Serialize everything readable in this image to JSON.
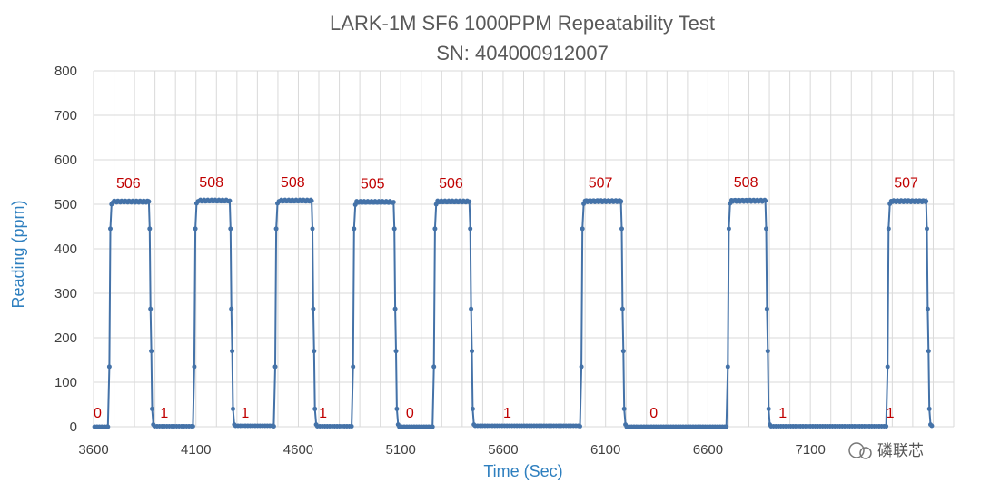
{
  "chart_data": {
    "type": "scatter",
    "title": "LARK-1M SF6 1000PPM Repeatability Test",
    "subtitle": "SN: 404000912007",
    "xlabel": "Time (Sec)",
    "ylabel": "Reading (ppm)",
    "xlim": [
      3600,
      7800
    ],
    "ylim": [
      0,
      800
    ],
    "x_ticks": [
      3600,
      4100,
      4600,
      5100,
      5600,
      6100,
      6600,
      7100
    ],
    "y_ticks": [
      0,
      100,
      200,
      300,
      400,
      500,
      600,
      700,
      800
    ],
    "grid": true,
    "legend": "none",
    "color": "#4472a8",
    "cycles": [
      {
        "rise_start": 3670,
        "fall_start": 3870,
        "baseline_before": 0,
        "plateau": 506
      },
      {
        "rise_start": 4085,
        "fall_start": 4265,
        "baseline_before": 1,
        "plateau": 508
      },
      {
        "rise_start": 4480,
        "fall_start": 4665,
        "baseline_before": 1,
        "plateau": 508
      },
      {
        "rise_start": 4860,
        "fall_start": 5065,
        "baseline_before": 1,
        "plateau": 505
      },
      {
        "rise_start": 5255,
        "fall_start": 5435,
        "baseline_before": 0,
        "plateau": 506
      },
      {
        "rise_start": 5975,
        "fall_start": 6175,
        "baseline_before": 1,
        "plateau": 507
      },
      {
        "rise_start": 6690,
        "fall_start": 6880,
        "baseline_before": 0,
        "plateau": 508
      },
      {
        "rise_start": 7470,
        "fall_start": 7665,
        "baseline_before": 1,
        "plateau": 507
      }
    ],
    "baseline_labels": [
      {
        "x": 3620,
        "text": "0"
      },
      {
        "x": 3945,
        "text": "1"
      },
      {
        "x": 4340,
        "text": "1"
      },
      {
        "x": 4720,
        "text": "1"
      },
      {
        "x": 5145,
        "text": "0"
      },
      {
        "x": 5620,
        "text": "1"
      },
      {
        "x": 6335,
        "text": "0"
      },
      {
        "x": 6965,
        "text": "1"
      },
      {
        "x": 7490,
        "text": "1"
      }
    ],
    "end_x": 7700,
    "watermark": "磷联芯"
  }
}
